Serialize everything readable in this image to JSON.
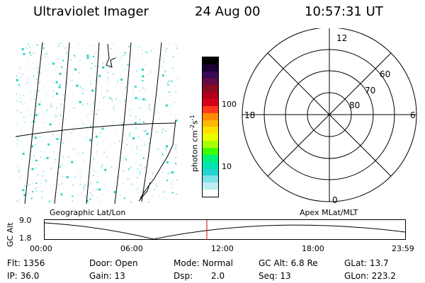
{
  "header": {
    "instrument": "Ultraviolet Imager",
    "date": "24 Aug 00",
    "time": "10:57:31 UT"
  },
  "colorbar": {
    "label": "photon cm",
    "label_exp": "-2",
    "label_unit": "s",
    "label_unit_exp": "-1",
    "ticks": [
      "100",
      "10"
    ],
    "colors": [
      "#000000",
      "#1a0033",
      "#3a0a55",
      "#620b44",
      "#8a0a22",
      "#b0001a",
      "#d80018",
      "#ff3a1a",
      "#ff8c00",
      "#ffb700",
      "#ffe100",
      "#e8ff00",
      "#a8ff00",
      "#3cff00",
      "#00f07a",
      "#00e4b0",
      "#22d4d2",
      "#7fe2e8",
      "#bdeef2",
      "#ffffff"
    ]
  },
  "map_panel": {
    "label": "Geographic Lat/Lon"
  },
  "polar_panel": {
    "label": "Apex MLat/MLT",
    "mlt_labels": {
      "top": "12",
      "bottom": "0",
      "left": "18",
      "right": "6"
    },
    "lat_labels": [
      "60",
      "70",
      "80"
    ]
  },
  "timeline": {
    "axis_label": "GC Alt",
    "y_ticks": [
      "9.0",
      "1.8"
    ],
    "x_ticks": [
      "00:00",
      "06:00",
      "12:00",
      "18:00",
      "23:59"
    ],
    "marker_color": "#e00000"
  },
  "info": {
    "flt": "Flt: 1356",
    "ip": "IP: 36.0",
    "door": "Door: Open",
    "gain": "Gain: 13",
    "mode": "Mode: Normal",
    "dsp": "Dsp:",
    "dsp_value": "2.0",
    "gc_alt": "GC Alt: 6.8 Re",
    "seq": "Seq: 13",
    "glat": "GLat:  13.7",
    "glon": "GLon: 223.2"
  }
}
